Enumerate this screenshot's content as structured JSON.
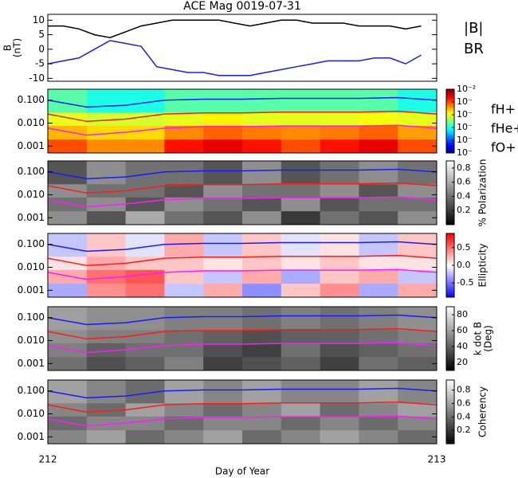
{
  "chart_data": [
    {
      "type": "line",
      "title": "ACE Mag 0019-07-31",
      "ylabel": [
        "B",
        "(nT)"
      ],
      "xlim": [
        212,
        213
      ],
      "ylim": [
        -11,
        12
      ],
      "yticks": [
        -10,
        -5,
        0,
        5,
        10
      ],
      "x": [
        212,
        212.04,
        212.08,
        212.12,
        212.16,
        212.2,
        212.24,
        212.28,
        212.32,
        212.36,
        212.4,
        212.44,
        212.48,
        212.52,
        212.56,
        212.6,
        212.64,
        212.68,
        212.72,
        212.76,
        212.8,
        212.84,
        212.88,
        212.92,
        212.96
      ],
      "series": [
        {
          "name": "|B|",
          "color": "#000000",
          "values": [
            8,
            8,
            7,
            5,
            4,
            6,
            8,
            9,
            10,
            10,
            10,
            10,
            9,
            8,
            9,
            10,
            10,
            9,
            9,
            9,
            8,
            8,
            8,
            7,
            8
          ]
        },
        {
          "name": "BR",
          "color": "#1a1aff",
          "values": [
            -5,
            -4,
            -3,
            0,
            3,
            2,
            1,
            -6,
            -7,
            -8,
            -8,
            -9,
            -9,
            -9,
            -8,
            -7,
            -6,
            -5,
            -4,
            -4,
            -4,
            -3,
            -3,
            -5,
            -2
          ]
        }
      ]
    },
    {
      "type": "heatmap",
      "colormap": "jet",
      "zlog": true,
      "zlim": [
        1e-07,
        0.01
      ],
      "zticks": [
        {
          "value": 0.01,
          "label": "10⁻²"
        },
        {
          "value": 0.001,
          "label": "10⁻"
        },
        {
          "value": 0.0001,
          "label": "10⁻"
        },
        {
          "value": 1e-05,
          "label": "10⁻"
        },
        {
          "value": 1e-06,
          "label": "10⁻"
        },
        {
          "value": 1e-07,
          "label": "10⁻"
        }
      ],
      "xlim": [
        212,
        213
      ],
      "ylog": true,
      "ylim": [
        0.0005,
        0.3
      ],
      "yticks": [
        0.001,
        {
          "value": 0.01,
          "label": "0.010"
        },
        {
          "value": 0.1,
          "label": "0.100"
        }
      ],
      "xbins": [
        212,
        212.1,
        212.2,
        212.3,
        212.4,
        212.5,
        212.6,
        212.7,
        212.8,
        212.9,
        213
      ],
      "ybins": [
        0.0005,
        0.002,
        0.008,
        0.03,
        0.3
      ],
      "z": [
        [
          0.001,
          0.0005,
          0.0005,
          0.002,
          0.003,
          0.002,
          0.001,
          0.002,
          0.003,
          0.001
        ],
        [
          0.0003,
          0.0002,
          0.0002,
          0.0005,
          0.0008,
          0.0006,
          0.0005,
          0.0006,
          0.0008,
          0.0004
        ],
        [
          0.0001,
          8e-05,
          8e-05,
          0.0001,
          0.00015,
          0.0001,
          0.0001,
          0.0001,
          0.00012,
          0.0001
        ],
        [
          2e-05,
          1e-05,
          1e-05,
          2e-05,
          2e-05,
          2e-05,
          2e-05,
          2e-05,
          2e-05,
          1e-05
        ]
      ],
      "x": [
        212,
        212.1,
        212.2,
        212.3,
        212.4,
        212.5,
        212.6,
        212.7,
        212.8,
        212.9,
        213
      ],
      "series": [
        {
          "name": "fH+",
          "color": "#1a1aff",
          "values": [
            0.1,
            0.05,
            0.06,
            0.1,
            0.11,
            0.11,
            0.12,
            0.12,
            0.12,
            0.13,
            0.1
          ]
        },
        {
          "name": "fHe+",
          "color": "#ff1a1a",
          "values": [
            0.025,
            0.012,
            0.015,
            0.025,
            0.028,
            0.028,
            0.03,
            0.03,
            0.03,
            0.033,
            0.025
          ]
        },
        {
          "name": "fO+",
          "color": "#ff1aff",
          "values": [
            0.006,
            0.003,
            0.004,
            0.006,
            0.007,
            0.007,
            0.0075,
            0.0075,
            0.0075,
            0.008,
            0.006
          ]
        }
      ]
    },
    {
      "type": "heatmap",
      "colormap": "gray",
      "zlabel": [
        "% Polarization"
      ],
      "zlim": [
        0,
        0.9
      ],
      "zticks": [
        0.2,
        0.4,
        0.6,
        0.8
      ],
      "xlim": [
        212,
        213
      ],
      "ylog": true,
      "ylim": [
        0.0005,
        0.3
      ],
      "yticks": [
        0.001,
        {
          "value": 0.01,
          "label": "0.010"
        },
        {
          "value": 0.1,
          "label": "0.100"
        }
      ],
      "xbins": [
        212,
        212.1,
        212.2,
        212.3,
        212.4,
        212.5,
        212.6,
        212.7,
        212.8,
        212.9,
        213
      ],
      "ybins": [
        0.0005,
        0.002,
        0.008,
        0.03,
        0.3
      ],
      "z": [
        [
          0.5,
          0.3,
          0.6,
          0.4,
          0.3,
          0.5,
          0.2,
          0.4,
          0.3,
          0.5
        ],
        [
          0.4,
          0.5,
          0.3,
          0.5,
          0.4,
          0.3,
          0.5,
          0.3,
          0.4,
          0.4
        ],
        [
          0.5,
          0.4,
          0.4,
          0.3,
          0.5,
          0.4,
          0.4,
          0.5,
          0.3,
          0.5
        ],
        [
          0.3,
          0.5,
          0.4,
          0.4,
          0.3,
          0.5,
          0.3,
          0.4,
          0.5,
          0.4
        ]
      ]
    },
    {
      "type": "heatmap",
      "colormap": "bwr",
      "zlabel": [
        "Ellipticity"
      ],
      "zlim": [
        -0.9,
        0.9
      ],
      "zticks": [
        -0.5,
        {
          "value": 0,
          "label": "0.0"
        },
        0.5
      ],
      "xlim": [
        212,
        213
      ],
      "ylog": true,
      "ylim": [
        0.0005,
        0.3
      ],
      "yticks": [
        0.001,
        {
          "value": 0.01,
          "label": "0.010"
        },
        {
          "value": 0.1,
          "label": "0.100"
        }
      ],
      "xbins": [
        212,
        212.1,
        212.2,
        212.3,
        212.4,
        212.5,
        212.6,
        212.7,
        212.8,
        212.9,
        213
      ],
      "ybins": [
        0.0005,
        0.002,
        0.008,
        0.03,
        0.3
      ],
      "z": [
        [
          -0.3,
          0.4,
          0.5,
          -0.2,
          0.3,
          -0.4,
          0.2,
          0.4,
          -0.3,
          0.3
        ],
        [
          0.3,
          0.5,
          0.6,
          0.2,
          -0.2,
          0.3,
          -0.3,
          0.2,
          0.3,
          -0.2
        ],
        [
          0.1,
          0.3,
          0.2,
          0.2,
          0.1,
          0.2,
          0.1,
          0.2,
          0.1,
          0.1
        ],
        [
          -0.2,
          0.2,
          -0.1,
          0.3,
          -0.2,
          0.2,
          -0.1,
          0.1,
          -0.2,
          0.2
        ]
      ]
    },
    {
      "type": "heatmap",
      "colormap": "gray",
      "zlabel": [
        "k dot B",
        "(Deg)"
      ],
      "zlim": [
        10,
        90
      ],
      "zticks": [
        20,
        40,
        60,
        80
      ],
      "xlim": [
        212,
        213
      ],
      "ylog": true,
      "ylim": [
        0.0005,
        0.3
      ],
      "yticks": [
        0.001,
        {
          "value": 0.01,
          "label": "0.010"
        },
        {
          "value": 0.1,
          "label": "0.100"
        }
      ],
      "xbins": [
        212,
        212.1,
        212.2,
        212.3,
        212.4,
        212.5,
        212.6,
        212.7,
        212.8,
        212.9,
        213
      ],
      "ybins": [
        0.0005,
        0.002,
        0.008,
        0.03,
        0.3
      ],
      "z": [
        [
          45,
          35,
          40,
          50,
          30,
          35,
          40,
          30,
          45,
          40
        ],
        [
          50,
          40,
          45,
          45,
          35,
          30,
          45,
          35,
          40,
          45
        ],
        [
          55,
          50,
          50,
          45,
          40,
          35,
          40,
          40,
          45,
          50
        ],
        [
          60,
          55,
          55,
          50,
          50,
          45,
          50,
          45,
          50,
          55
        ]
      ]
    },
    {
      "type": "heatmap",
      "colormap": "gray",
      "zlabel": [
        "Coherency"
      ],
      "zlim": [
        0,
        0.95
      ],
      "zticks": [
        0.2,
        0.4,
        0.6,
        0.8
      ],
      "xlim": [
        212,
        213
      ],
      "xticks": [
        212,
        213
      ],
      "xlabel": "Day of Year",
      "ylog": true,
      "ylim": [
        0.0005,
        0.3
      ],
      "yticks": [
        0.001,
        {
          "value": 0.01,
          "label": "0.010"
        },
        {
          "value": 0.1,
          "label": "0.100"
        }
      ],
      "xbins": [
        212,
        212.1,
        212.2,
        212.3,
        212.4,
        212.5,
        212.6,
        212.7,
        212.8,
        212.9,
        213
      ],
      "ybins": [
        0.0005,
        0.002,
        0.008,
        0.03,
        0.3
      ],
      "z": [
        [
          0.5,
          0.6,
          0.4,
          0.5,
          0.6,
          0.4,
          0.5,
          0.6,
          0.5,
          0.4
        ],
        [
          0.4,
          0.5,
          0.5,
          0.4,
          0.5,
          0.5,
          0.4,
          0.5,
          0.4,
          0.5
        ],
        [
          0.5,
          0.4,
          0.6,
          0.5,
          0.4,
          0.5,
          0.6,
          0.4,
          0.5,
          0.6
        ],
        [
          0.6,
          0.5,
          0.4,
          0.6,
          0.5,
          0.6,
          0.5,
          0.5,
          0.6,
          0.5
        ]
      ]
    }
  ]
}
